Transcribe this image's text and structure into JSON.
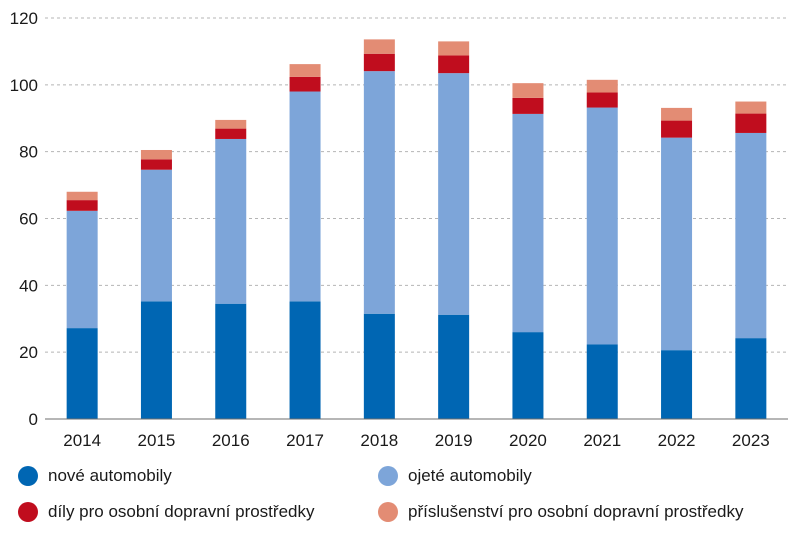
{
  "chart_data": {
    "type": "bar",
    "stacked": true,
    "categories": [
      "2014",
      "2015",
      "2016",
      "2017",
      "2018",
      "2019",
      "2020",
      "2021",
      "2022",
      "2023"
    ],
    "series": [
      {
        "name": "nové automobily",
        "color": "#0066b3",
        "values": [
          27.2,
          35.2,
          34.5,
          35.2,
          31.5,
          31.2,
          26.0,
          22.3,
          20.6,
          24.2
        ]
      },
      {
        "name": "ojeté automobily",
        "color": "#7da5d9",
        "values": [
          35.1,
          39.4,
          49.3,
          62.8,
          72.6,
          72.3,
          65.3,
          70.9,
          63.6,
          61.4
        ]
      },
      {
        "name": "díly pro osobní dopravní prostředky",
        "color": "#c00d1e",
        "values": [
          3.2,
          3.1,
          3.1,
          4.4,
          5.2,
          5.3,
          4.8,
          4.5,
          5.1,
          5.8
        ]
      },
      {
        "name": "příslušenství pro osobní dopravní prostředky",
        "color": "#e38c74",
        "values": [
          2.5,
          2.8,
          2.6,
          3.8,
          4.3,
          4.2,
          4.4,
          3.8,
          3.8,
          3.6
        ]
      }
    ],
    "ylim": [
      0,
      120
    ],
    "yticks": [
      0,
      20,
      40,
      60,
      80,
      100,
      120
    ],
    "grid": true,
    "legend_position": "bottom"
  }
}
